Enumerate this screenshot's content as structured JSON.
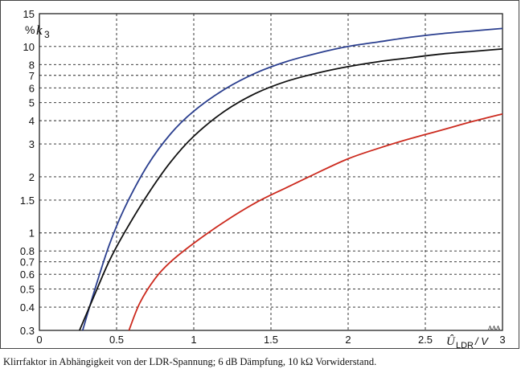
{
  "chart_data": {
    "type": "line",
    "yscale": "log",
    "xlim": [
      0,
      3
    ],
    "ylim": [
      0.3,
      15
    ],
    "grid": true,
    "xticks": [
      "0",
      "0.5",
      "1",
      "1.5",
      "2",
      "2.5",
      "3"
    ],
    "yticks": [
      "0.3",
      "0.4",
      "0.5",
      "0.6",
      "0.7",
      "0.8",
      "1",
      "1.5",
      "2",
      "3",
      "4",
      "5",
      "6",
      "7",
      "8",
      "10",
      "15"
    ],
    "ylabel_unit": "%",
    "ylabel_symbol": "k",
    "ylabel_sub": "3",
    "xlabel_symbol": "Û",
    "xlabel_sub": "LDR",
    "xlabel_unit": "/ V",
    "corner_mark": "ᴧᴧᴧ",
    "series": [
      {
        "color": "#2b3f8f",
        "x": [
          0.28,
          0.35,
          0.45,
          0.55,
          0.7,
          0.85,
          1.0,
          1.2,
          1.4,
          1.6,
          1.8,
          2.0,
          2.2,
          2.4,
          2.6,
          2.8,
          3.0
        ],
        "y": [
          0.3,
          0.47,
          0.85,
          1.35,
          2.3,
          3.4,
          4.5,
          5.9,
          7.2,
          8.3,
          9.2,
          10.0,
          10.6,
          11.2,
          11.7,
          12.1,
          12.5
        ]
      },
      {
        "color": "#111111",
        "x": [
          0.26,
          0.35,
          0.45,
          0.55,
          0.7,
          0.85,
          1.0,
          1.2,
          1.4,
          1.6,
          1.8,
          2.0,
          2.2,
          2.4,
          2.6,
          2.8,
          3.0
        ],
        "y": [
          0.3,
          0.45,
          0.7,
          1.0,
          1.6,
          2.4,
          3.3,
          4.5,
          5.6,
          6.5,
          7.2,
          7.8,
          8.3,
          8.7,
          9.1,
          9.4,
          9.7
        ]
      },
      {
        "color": "#cc2a1e",
        "x": [
          0.58,
          0.65,
          0.75,
          0.85,
          1.0,
          1.2,
          1.4,
          1.6,
          1.8,
          2.0,
          2.2,
          2.4,
          2.6,
          2.8,
          3.0
        ],
        "y": [
          0.3,
          0.42,
          0.57,
          0.7,
          0.88,
          1.15,
          1.45,
          1.75,
          2.1,
          2.5,
          2.85,
          3.2,
          3.55,
          3.95,
          4.35
        ]
      }
    ]
  },
  "caption": "Klirrfaktor in Abhängigkeit von der LDR-Spannung; 6 dB Dämpfung, 10 kΩ Vorwiderstand."
}
